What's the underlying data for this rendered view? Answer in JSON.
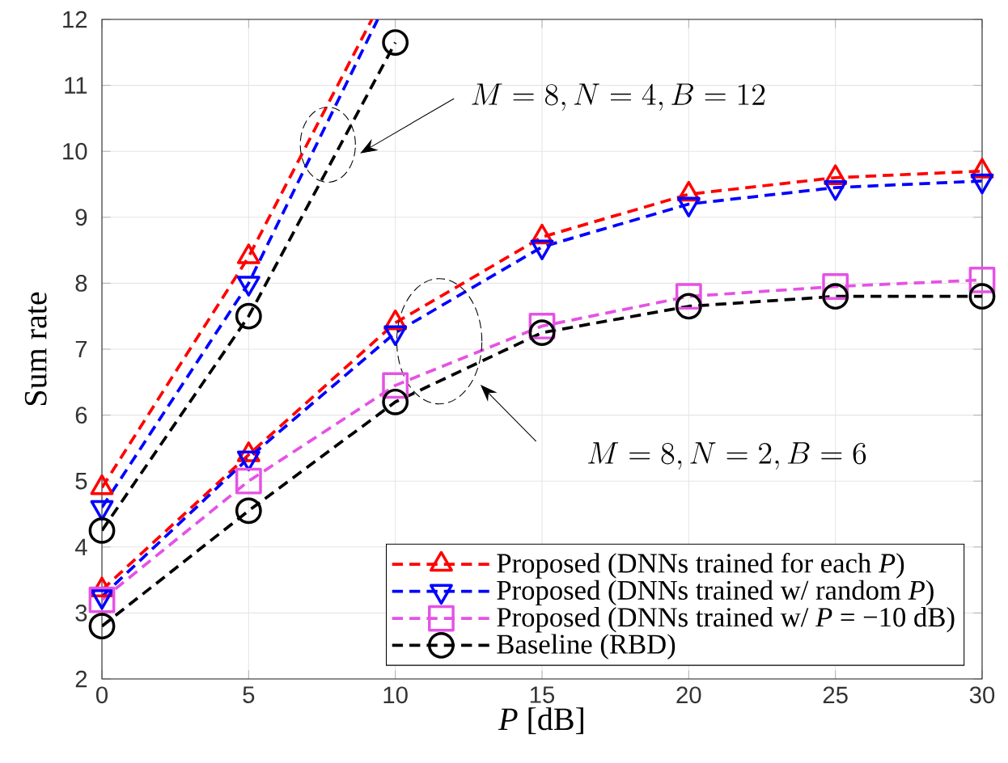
{
  "chart_data": {
    "type": "line",
    "xlabel": "*P* [dB]",
    "ylabel": "Sum rate",
    "xlim": [
      0,
      30
    ],
    "ylim": [
      2,
      12
    ],
    "xticks": [
      0,
      5,
      10,
      15,
      20,
      25,
      30
    ],
    "yticks": [
      2,
      3,
      4,
      5,
      6,
      7,
      8,
      9,
      10,
      11,
      12
    ],
    "grid": true,
    "legend": "bottom right",
    "line_style": "dashed",
    "x": [
      0,
      5,
      10,
      15,
      20,
      25,
      30
    ],
    "series": [
      {
        "name": "Proposed (DNNs trained for each *P*)",
        "color": "#ff0000",
        "marker": "triangle",
        "values": [
          3.35,
          5.4,
          7.4,
          8.7,
          9.35,
          9.6,
          9.7
        ]
      },
      {
        "name": "Proposed (DNNs trained w/ random *P*)",
        "color": "#0000ff",
        "marker": "triangle-down",
        "values": [
          3.25,
          5.35,
          7.25,
          8.55,
          9.2,
          9.45,
          9.55
        ]
      },
      {
        "name": "Proposed (DNNs trained w/ *P* = −10 dB)",
        "color": "#e552e5",
        "marker": "square",
        "values": [
          3.2,
          5.0,
          6.45,
          7.35,
          7.8,
          7.95,
          8.05
        ]
      },
      {
        "name": "Baseline (RBD)",
        "color": "#000000",
        "marker": "circle",
        "values": [
          2.8,
          4.55,
          6.2,
          7.25,
          7.65,
          7.8,
          7.8
        ]
      },
      {
        "color": "#ff0000",
        "marker": "triangle",
        "x": [
          0,
          5,
          9.2
        ],
        "values": [
          4.9,
          8.4,
          12
        ]
      },
      {
        "color": "#0000ff",
        "marker": "triangle-down",
        "x": [
          0,
          5,
          9.4
        ],
        "values": [
          4.6,
          8.0,
          12
        ]
      },
      {
        "color": "#000000",
        "marker": "circle",
        "x": [
          0,
          5,
          10
        ],
        "values": [
          4.25,
          7.5,
          11.65
        ]
      }
    ],
    "annotations": [
      "M=8, N=4, B=12",
      "M=8, N=2, B=6"
    ]
  }
}
